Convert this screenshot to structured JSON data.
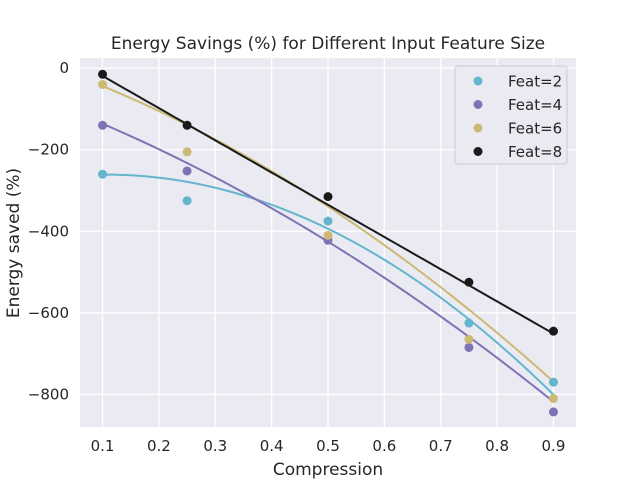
{
  "chart_data": {
    "type": "scatter",
    "title": "Energy Savings (%) for Different Input Feature Size",
    "xlabel": "Compression",
    "ylabel": "Energy saved (%)",
    "xlim": [
      0.06,
      0.94
    ],
    "ylim": [
      -880,
      25
    ],
    "xticks": [
      0.1,
      0.2,
      0.3,
      0.4,
      0.5,
      0.6,
      0.7,
      0.8,
      0.9
    ],
    "xtick_labels": [
      "0.1",
      "0.2",
      "0.3",
      "0.4",
      "0.5",
      "0.6",
      "0.7",
      "0.8",
      "0.9"
    ],
    "yticks": [
      0,
      -200,
      -400,
      -600,
      -800
    ],
    "ytick_labels": [
      "0",
      "−200",
      "−400",
      "−600",
      "−800"
    ],
    "grid": true,
    "legend_position": "top-right",
    "background": "#eaeaf2",
    "series": [
      {
        "name": "Feat=2",
        "color": "#64b5cd",
        "x": [
          0.1,
          0.25,
          0.5,
          0.75,
          0.9
        ],
        "y": [
          -260,
          -325,
          -375,
          -625,
          -770
        ],
        "fit": [
          -270.5,
          180,
          -852,
          -2.8
        ]
      },
      {
        "name": "Feat=4",
        "color": "#8172b3",
        "x": [
          0.1,
          0.25,
          0.5,
          0.75,
          0.9
        ],
        "y": [
          -140,
          -252,
          -422,
          -685,
          -843
        ],
        "fit": [
          -80,
          -529.6,
          -322.9,
          0
        ]
      },
      {
        "name": "Feat=6",
        "color": "#ccb974",
        "x": [
          0.1,
          0.25,
          0.5,
          0.75,
          0.9
        ],
        "y": [
          -40,
          -205,
          -410,
          -665,
          -810
        ],
        "fit": [
          8.9,
          -486.2,
          -420,
          0
        ]
      },
      {
        "name": "Feat=8",
        "color": "#1a1a1a",
        "x": [
          0.1,
          0.25,
          0.5,
          0.75,
          0.9
        ],
        "y": [
          -15,
          -140,
          -315,
          -525,
          -645
        ],
        "fit": [
          60,
          -790,
          0,
          0
        ]
      }
    ]
  }
}
